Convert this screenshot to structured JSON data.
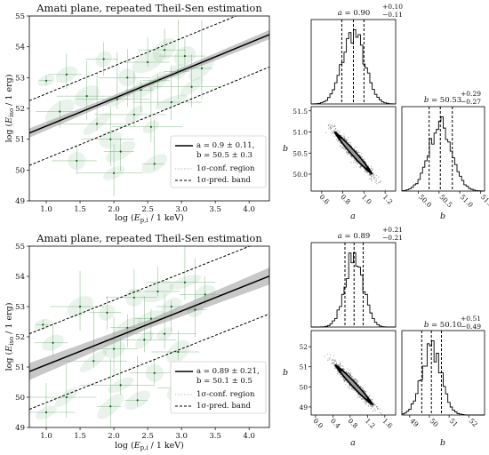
{
  "chart_data": [
    {
      "type": "scatter",
      "title": "Amati plane, repeated Theil-Sen estimation",
      "xlabel": "log (E_p,i / 1 keV)",
      "ylabel": "log (E_iso / 1 erg)",
      "xlim": [
        0.75,
        4.3
      ],
      "ylim": [
        49,
        55
      ],
      "xticks": [
        "1.0",
        "1.5",
        "2.0",
        "2.5",
        "3.0",
        "3.5",
        "4.0"
      ],
      "yticks": [
        "49",
        "50",
        "51",
        "52",
        "53",
        "54",
        "55"
      ],
      "fit": {
        "a": 0.9,
        "b": 50.5
      },
      "conf_width": 0.15,
      "pred_offset": 1.05,
      "legend": {
        "position": "lower-right",
        "entries": [
          "a = 0.9 ± 0.11,",
          "b = 50.5 ± 0.3",
          "1σ-conf. region",
          "1σ-pred. band"
        ]
      },
      "points": [
        {
          "x": 1.0,
          "y": 52.9
        },
        {
          "x": 1.3,
          "y": 53.1
        },
        {
          "x": 1.6,
          "y": 52.4
        },
        {
          "x": 1.75,
          "y": 51.5
        },
        {
          "x": 1.85,
          "y": 53.6
        },
        {
          "x": 1.95,
          "y": 51.0
        },
        {
          "x": 2.05,
          "y": 52.3
        },
        {
          "x": 2.1,
          "y": 50.6
        },
        {
          "x": 2.2,
          "y": 53.0
        },
        {
          "x": 2.3,
          "y": 51.8
        },
        {
          "x": 2.4,
          "y": 52.6
        },
        {
          "x": 2.5,
          "y": 53.5
        },
        {
          "x": 2.55,
          "y": 51.4
        },
        {
          "x": 2.65,
          "y": 52.9
        },
        {
          "x": 2.75,
          "y": 53.9
        },
        {
          "x": 2.85,
          "y": 52.2
        },
        {
          "x": 2.95,
          "y": 53.2
        },
        {
          "x": 3.05,
          "y": 53.7
        },
        {
          "x": 3.15,
          "y": 52.7
        },
        {
          "x": 3.3,
          "y": 53.3
        },
        {
          "x": 1.45,
          "y": 50.3
        },
        {
          "x": 2.0,
          "y": 49.9
        },
        {
          "x": 2.6,
          "y": 50.2
        },
        {
          "x": 1.2,
          "y": 51.9
        }
      ]
    },
    {
      "type": "histogram",
      "title": "a = 0.90 (+0.10, −0.11)",
      "title_parts": {
        "lhs": "a = 0.90",
        "sup": "+0.10",
        "sub": "−0.11"
      },
      "xlim": [
        0.5,
        1.3
      ],
      "quantiles": [
        0.79,
        0.9,
        1.0
      ],
      "center": 0.9,
      "sigma": 0.105
    },
    {
      "type": "scatter",
      "title": "corner: b vs a",
      "xlabel": "a",
      "ylabel": "b",
      "xlim": [
        0.5,
        1.3
      ],
      "ylim": [
        49.6,
        51.6
      ],
      "xticks": [
        "0.6",
        "0.8",
        "1.0",
        "1.2"
      ],
      "yticks": [
        "50.0",
        "50.5",
        "51.0",
        "51.5"
      ],
      "center": [
        0.9,
        50.5
      ],
      "slope": -2.8
    },
    {
      "type": "histogram",
      "title": "b = 50.53 (+0.29, −0.27)",
      "title_parts": {
        "lhs": "b = 50.53",
        "sup": "+0.29",
        "sub": "−0.27"
      },
      "xlabel": "b",
      "xlim": [
        49.6,
        51.6
      ],
      "xticks": [
        "50.0",
        "50.5",
        "51.0",
        "51.5"
      ],
      "quantiles": [
        50.26,
        50.53,
        50.82
      ],
      "center": 50.53,
      "sigma": 0.28
    },
    {
      "type": "scatter",
      "title": "Amati plane, repeated Theil-Sen estimation",
      "xlabel": "log (E_p,i / 1 keV)",
      "ylabel": "log (E_iso / 1 erg)",
      "xlim": [
        0.75,
        4.3
      ],
      "ylim": [
        49,
        55
      ],
      "xticks": [
        "1.0",
        "1.5",
        "2.0",
        "2.5",
        "3.0",
        "3.5",
        "4.0"
      ],
      "yticks": [
        "49",
        "50",
        "51",
        "52",
        "53",
        "54",
        "55"
      ],
      "fit": {
        "a": 0.89,
        "b": 50.1
      },
      "conf_width": 0.28,
      "pred_offset": 1.25,
      "legend": {
        "position": "lower-right",
        "entries": [
          "a = 0.89 ± 0.21,",
          "b = 50.1 ± 0.5",
          "1σ-conf. region",
          "1σ-pred. band"
        ]
      },
      "points": [
        {
          "x": 0.95,
          "y": 52.4
        },
        {
          "x": 1.1,
          "y": 51.8
        },
        {
          "x": 1.5,
          "y": 53.0
        },
        {
          "x": 1.7,
          "y": 51.2
        },
        {
          "x": 1.9,
          "y": 52.8
        },
        {
          "x": 2.0,
          "y": 51.6
        },
        {
          "x": 2.1,
          "y": 50.4
        },
        {
          "x": 2.2,
          "y": 52.3
        },
        {
          "x": 2.3,
          "y": 53.3
        },
        {
          "x": 2.45,
          "y": 51.9
        },
        {
          "x": 2.55,
          "y": 52.6
        },
        {
          "x": 2.65,
          "y": 53.5
        },
        {
          "x": 2.75,
          "y": 52.1
        },
        {
          "x": 2.85,
          "y": 53.0
        },
        {
          "x": 2.95,
          "y": 51.5
        },
        {
          "x": 3.05,
          "y": 53.8
        },
        {
          "x": 3.2,
          "y": 52.9
        },
        {
          "x": 3.35,
          "y": 53.4
        },
        {
          "x": 1.3,
          "y": 50.0
        },
        {
          "x": 1.95,
          "y": 49.7
        },
        {
          "x": 2.6,
          "y": 50.8
        },
        {
          "x": 1.0,
          "y": 49.5
        },
        {
          "x": 2.35,
          "y": 49.9
        },
        {
          "x": 3.0,
          "y": 50.3
        }
      ]
    },
    {
      "type": "histogram",
      "title": "a = 0.89 (+0.21, −0.21)",
      "title_parts": {
        "lhs": "a = 0.89",
        "sup": "+0.21",
        "sub": "−0.21"
      },
      "xlim": [
        -0.1,
        1.85
      ],
      "quantiles": [
        0.68,
        0.89,
        1.1
      ],
      "center": 0.89,
      "sigma": 0.21
    },
    {
      "type": "scatter",
      "title": "corner: b vs a",
      "xlabel": "a",
      "ylabel": "b",
      "xlim": [
        -0.1,
        1.85
      ],
      "ylim": [
        48.6,
        52.8
      ],
      "xticks": [
        "0.0",
        "0.4",
        "0.8",
        "1.2",
        "1.6"
      ],
      "yticks": [
        "49",
        "50",
        "51",
        "52"
      ],
      "center": [
        0.89,
        50.1
      ],
      "slope": -2.3
    },
    {
      "type": "histogram",
      "title": "b = 50.10 (+0.51, −0.49)",
      "title_parts": {
        "lhs": "b = 50.10",
        "sup": "+0.51",
        "sub": "−0.49"
      },
      "xlabel": "b",
      "xlim": [
        48.6,
        52.8
      ],
      "xticks": [
        "49",
        "50",
        "51",
        "52"
      ],
      "quantiles": [
        49.61,
        50.1,
        50.61
      ],
      "center": 50.1,
      "sigma": 0.5
    }
  ]
}
